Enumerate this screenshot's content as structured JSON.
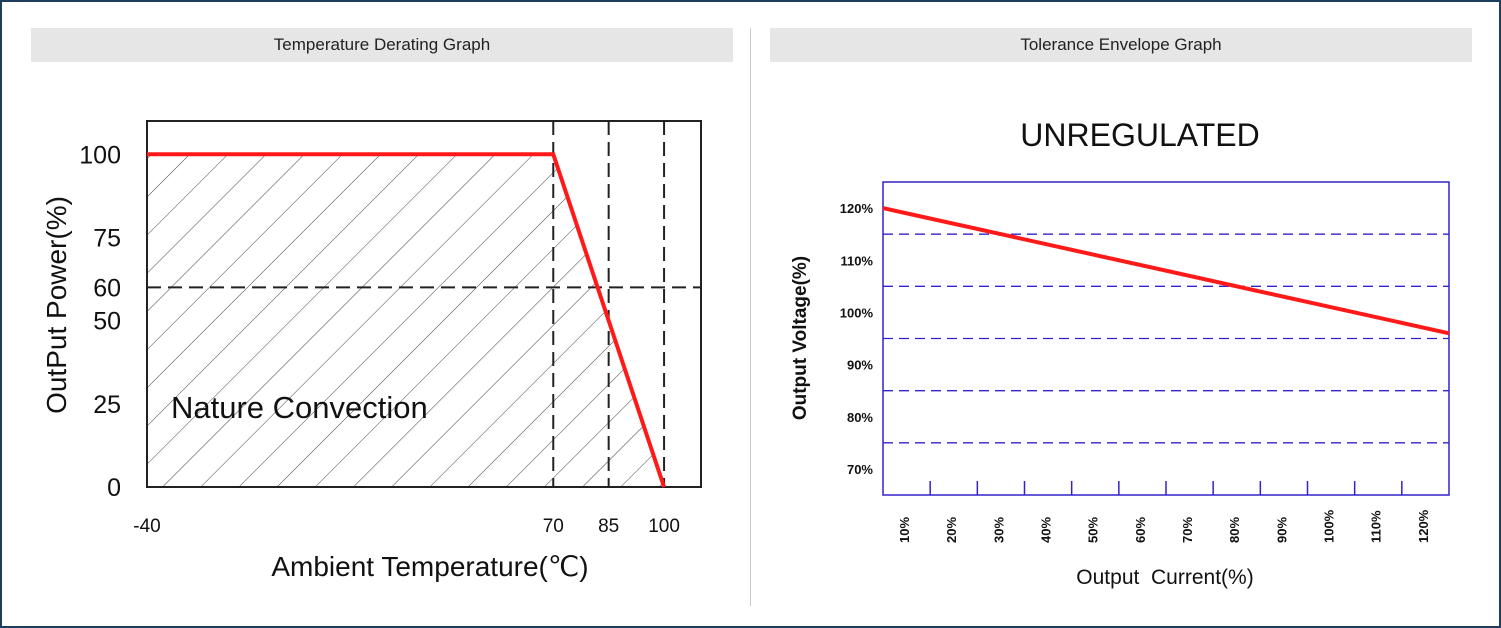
{
  "panels": {
    "left_title": "Temperature Derating Graph",
    "right_title": "Tolerance Envelope Graph"
  },
  "chart_data": [
    {
      "type": "line",
      "title": "",
      "xlabel": "Ambient Temperature(℃)",
      "ylabel": "OutPut Power(%)",
      "xlim": [
        -40,
        110
      ],
      "ylim": [
        0,
        110
      ],
      "x_ticks": [
        {
          "value": -40,
          "label": "-40"
        },
        {
          "value": 70,
          "label": "70"
        },
        {
          "value": 85,
          "label": "85"
        },
        {
          "value": 100,
          "label": "100"
        }
      ],
      "y_ticks": [
        {
          "value": 0,
          "label": "0"
        },
        {
          "value": 25,
          "label": "25"
        },
        {
          "value": 50,
          "label": "50"
        },
        {
          "value": 60,
          "label": "60"
        },
        {
          "value": 75,
          "label": "75"
        },
        {
          "value": 100,
          "label": "100"
        }
      ],
      "series": [
        {
          "x": [
            -40,
            70,
            100
          ],
          "y": [
            100,
            100,
            0
          ],
          "color": "#ff1a1a"
        }
      ],
      "reference_lines": {
        "vertical_x": [
          70,
          85,
          100
        ],
        "horizontal_y": [
          60
        ],
        "style": "dashed"
      },
      "shaded_region": {
        "label": "Nature Convection",
        "pattern": "diagonal-hatch",
        "under_series": true
      },
      "annotation": "Nature Convection",
      "grid": false
    },
    {
      "type": "line",
      "title": "UNREGULATED",
      "xlabel": "Output  Current(%)",
      "ylabel": "Output Voltage(%)",
      "xlim": [
        2,
        128
      ],
      "ylim": [
        65,
        125
      ],
      "x_tick_labels": [
        "10%",
        "20%",
        "30%",
        "40%",
        "50%",
        "60%",
        "70%",
        "80%",
        "90%",
        "100%",
        "110%",
        "120%"
      ],
      "y_ticks": [
        {
          "value": 70,
          "label": "70%"
        },
        {
          "value": 80,
          "label": "80%"
        },
        {
          "value": 90,
          "label": "90%"
        },
        {
          "value": 100,
          "label": "100%"
        },
        {
          "value": 110,
          "label": "110%"
        },
        {
          "value": 120,
          "label": "120%"
        }
      ],
      "grid_lines_y": [
        75,
        85,
        95,
        105,
        115
      ],
      "series": [
        {
          "x": [
            2,
            128
          ],
          "y": [
            120,
            96
          ],
          "color": "#ff1a1a"
        }
      ],
      "grid": true,
      "frame_color": "#3322cc"
    }
  ]
}
